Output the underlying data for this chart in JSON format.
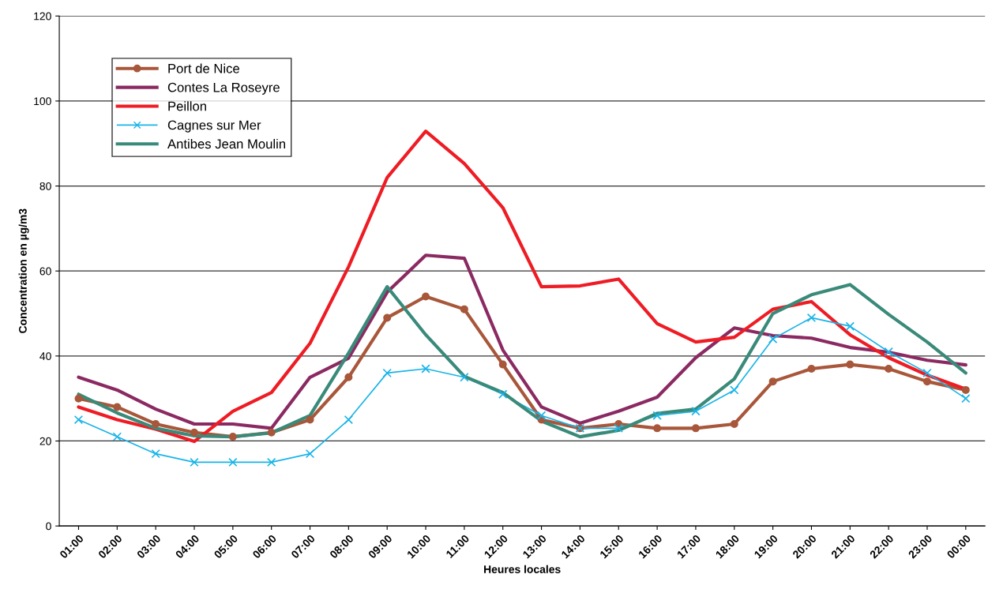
{
  "chart_data": {
    "type": "line",
    "xlabel": "Heures locales",
    "ylabel": "Concentration en µg/m3",
    "categories": [
      "01:00",
      "02:00",
      "03:00",
      "04:00",
      "05:00",
      "06:00",
      "07:00",
      "08:00",
      "09:00",
      "10:00",
      "11:00",
      "12:00",
      "13:00",
      "14:00",
      "15:00",
      "16:00",
      "17:00",
      "18:00",
      "19:00",
      "20:00",
      "21:00",
      "22:00",
      "23:00",
      "00:00"
    ],
    "series": [
      {
        "name": "Port de Nice",
        "color": "#a8573a",
        "marker": "circle",
        "values": [
          30,
          28,
          24,
          22,
          21,
          22,
          25,
          35,
          49,
          54,
          51,
          38,
          25,
          23,
          24,
          23,
          23,
          24,
          34,
          37,
          38,
          37,
          34,
          32
        ]
      },
      {
        "name": "Contes La Roseyre",
        "color": "#8b2a62",
        "marker": "none",
        "values": [
          35,
          32,
          27.5,
          24,
          24,
          23,
          35,
          39.5,
          55,
          63.7,
          63,
          41.4,
          28,
          24.2,
          27,
          30.3,
          39.6,
          46.6,
          44.8,
          44.2,
          42,
          40.9,
          39,
          37.9
        ]
      },
      {
        "name": "Peillon",
        "color": "#ee1c24",
        "marker": "none",
        "values": [
          28,
          25,
          22.8,
          19.9,
          27,
          31.4,
          43,
          61,
          82,
          92.9,
          85.3,
          74.9,
          56.3,
          56.5,
          58.1,
          47.6,
          43.3,
          44.4,
          51,
          52.8,
          45,
          39.6,
          35.5,
          32.2
        ]
      },
      {
        "name": "Cagnes sur Mer",
        "color": "#19b4e8",
        "marker": "cross",
        "values": [
          25,
          21,
          17,
          15,
          15,
          15,
          17,
          25,
          36,
          37,
          35,
          31,
          26,
          23,
          23,
          26,
          27,
          32,
          44,
          49,
          47,
          41,
          36,
          30
        ]
      },
      {
        "name": "Antibes Jean Moulin",
        "color": "#3a8a7a",
        "marker": "none",
        "values": [
          31,
          26.6,
          23,
          21.2,
          21,
          21.9,
          26,
          40.7,
          56.3,
          45,
          35.2,
          31.4,
          24.7,
          21,
          22.5,
          26.5,
          27.5,
          34.6,
          50,
          54.4,
          56.8,
          49.8,
          43.3,
          36
        ]
      }
    ],
    "ylim": [
      0,
      120
    ],
    "yticks": [
      0,
      20,
      40,
      60,
      80,
      100,
      120
    ],
    "grid": "y",
    "legend": "top left"
  }
}
